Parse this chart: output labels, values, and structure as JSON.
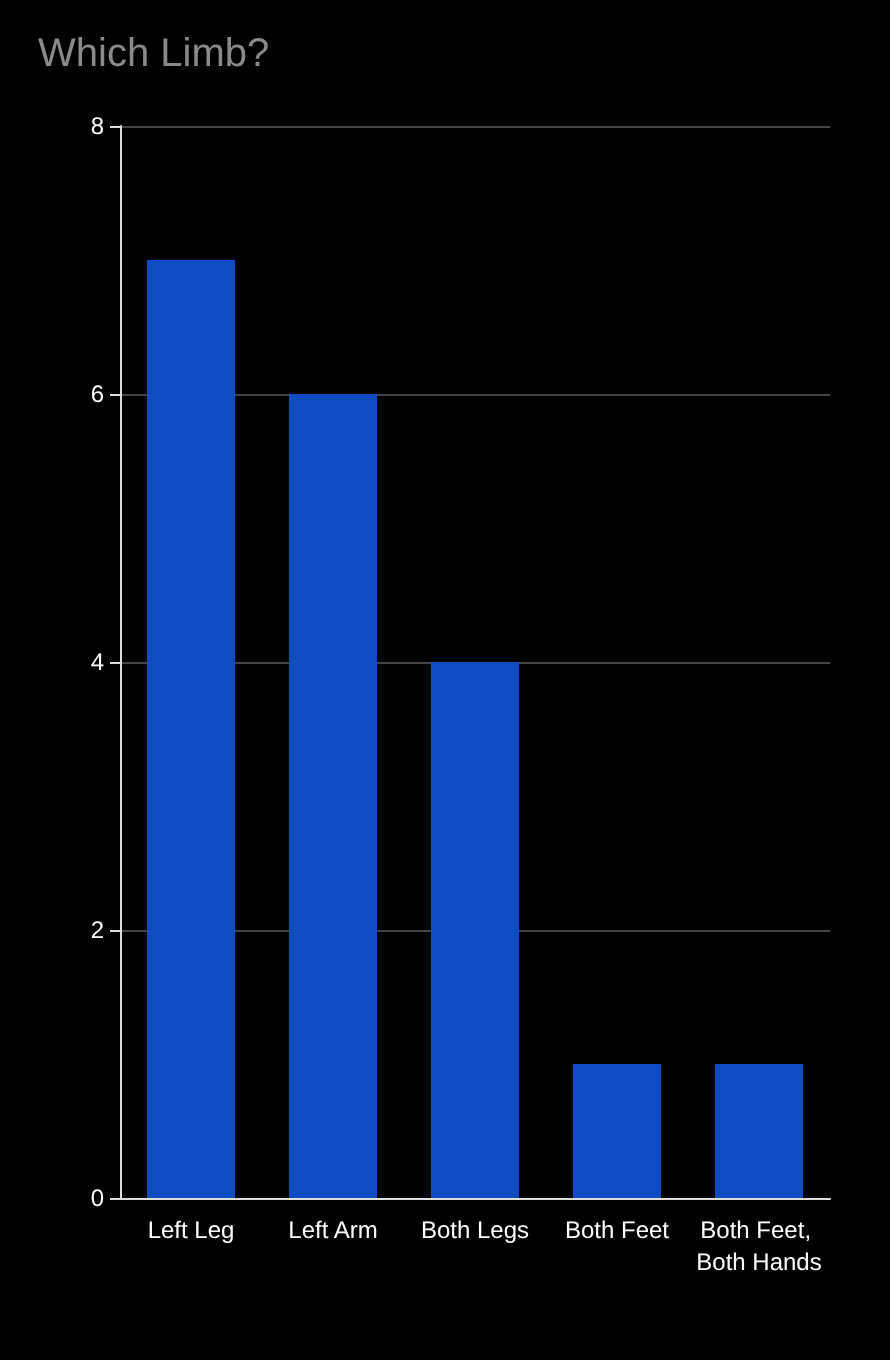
{
  "chart_data": {
    "type": "bar",
    "title": "Which Limb?",
    "categories": [
      "Left Leg",
      "Left Arm",
      "Both Legs",
      "Both Feet",
      "Both Feet, Both Hands"
    ],
    "values": [
      7,
      6,
      4,
      1,
      1
    ],
    "color": "#0f4cc2",
    "ylim": [
      0,
      8
    ],
    "yticks": [
      0,
      2,
      4,
      6,
      8
    ],
    "grid": "y"
  }
}
